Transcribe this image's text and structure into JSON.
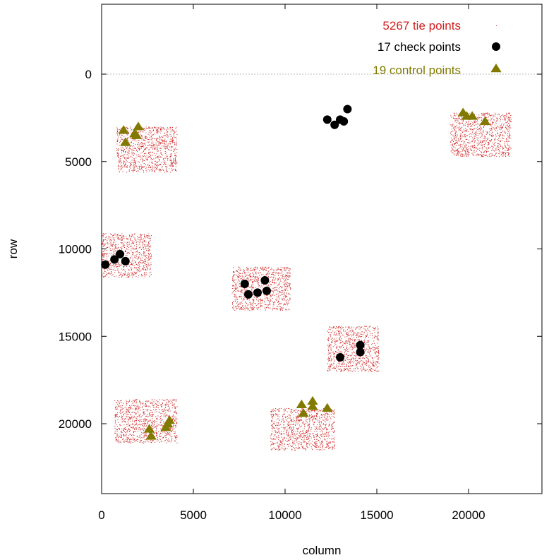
{
  "chart_data": {
    "type": "scatter",
    "title": "",
    "xlabel": "column",
    "ylabel": "row",
    "xlim": [
      0,
      24000
    ],
    "ylim": [
      24000,
      -4000
    ],
    "y_inverted": true,
    "xticks": [
      0,
      5000,
      10000,
      15000,
      20000
    ],
    "yticks": [
      0,
      5000,
      10000,
      15000,
      20000
    ],
    "zero_line": true,
    "legend_position": "top-right",
    "colors": {
      "tie": "#cc1f1f",
      "check": "#000000",
      "control": "#827a00",
      "zero_line": "#bbbbbb",
      "tie_legend_text": "#d11f1f"
    },
    "series": [
      {
        "name": "5267 tie points",
        "marker": "dot",
        "regions": [
          {
            "x": [
              800,
              4100
            ],
            "y": [
              3000,
              5600
            ]
          },
          {
            "x": [
              19000,
              22300
            ],
            "y": [
              2200,
              4700
            ]
          },
          {
            "x": [
              0,
              2700
            ],
            "y": [
              9100,
              11600
            ]
          },
          {
            "x": [
              7100,
              10300
            ],
            "y": [
              11000,
              13500
            ]
          },
          {
            "x": [
              12300,
              15100
            ],
            "y": [
              14400,
              17000
            ]
          },
          {
            "x": [
              700,
              4100
            ],
            "y": [
              18600,
              21100
            ]
          },
          {
            "x": [
              9200,
              12700
            ],
            "y": [
              19100,
              21500
            ]
          }
        ]
      },
      {
        "name": "17 check points",
        "marker": "circle",
        "x": [
          12300,
          12700,
          13000,
          13200,
          13400,
          200,
          700,
          1000,
          1300,
          7800,
          8000,
          8500,
          8900,
          9000,
          13000,
          14100,
          14100
        ],
        "y": [
          2600,
          2900,
          2600,
          2700,
          2000,
          10900,
          10600,
          10300,
          10700,
          12000,
          12600,
          12500,
          11800,
          12400,
          16200,
          15900,
          15500
        ]
      },
      {
        "name": "19 control points",
        "marker": "triangle",
        "x": [
          1200,
          1300,
          1800,
          1900,
          2000,
          19700,
          19900,
          20200,
          20900,
          2600,
          2700,
          3500,
          3600,
          3700,
          10900,
          11000,
          11500,
          11500,
          12300
        ],
        "y": [
          3200,
          3900,
          3400,
          3500,
          3000,
          2200,
          2400,
          2400,
          2700,
          20300,
          20700,
          20200,
          20000,
          19800,
          18900,
          19400,
          19000,
          18700,
          19100
        ]
      }
    ]
  }
}
